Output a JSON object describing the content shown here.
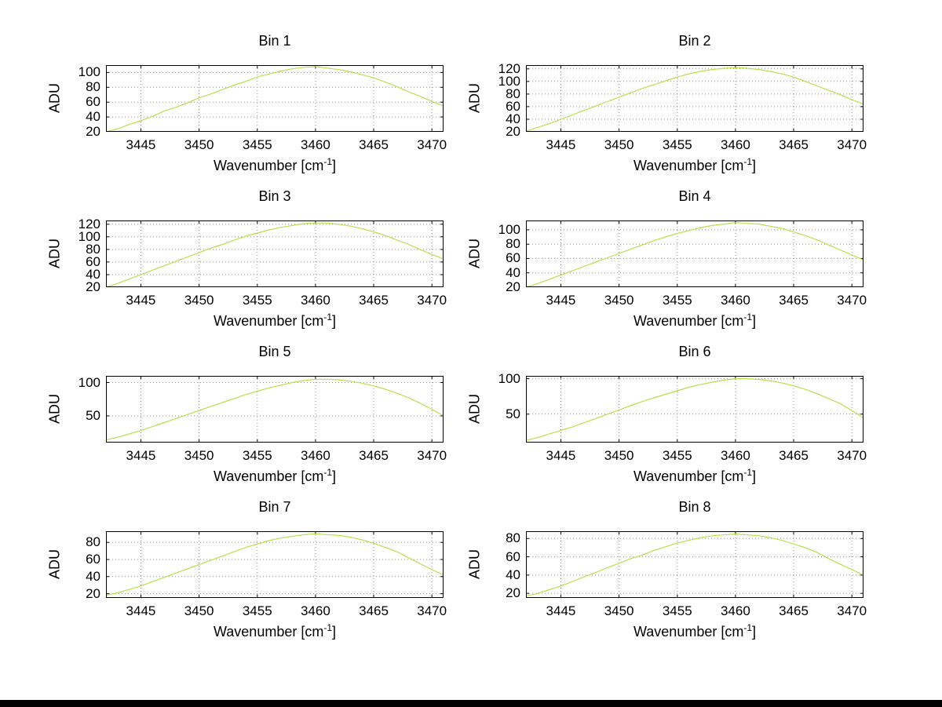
{
  "figure": {
    "background": "#ffffff",
    "bottom_bar_color": "#000000"
  },
  "line_color": "#b8e04e",
  "grid_color": "#909090",
  "axis_color": "#000000",
  "labels": {
    "x_pre": "Wavenumber [cm",
    "x_sup": "-1",
    "x_post": "]",
    "y": "ADU"
  },
  "chart_data": [
    {
      "type": "line",
      "title": "Bin 1",
      "xlabel": "Wavenumber [cm^-1]",
      "ylabel": "ADU",
      "xlim": [
        3442,
        3471
      ],
      "ylim": [
        20,
        110
      ],
      "xticks": [
        3445,
        3450,
        3455,
        3460,
        3465,
        3470
      ],
      "yticks": [
        20,
        40,
        60,
        80,
        100
      ],
      "grid": true,
      "x": [
        3442,
        3443,
        3444,
        3445,
        3446,
        3447,
        3448,
        3449,
        3450,
        3451,
        3452,
        3453,
        3454,
        3455,
        3456,
        3457,
        3458,
        3459,
        3460,
        3461,
        3462,
        3463,
        3464,
        3465,
        3466,
        3467,
        3468,
        3469,
        3470,
        3471
      ],
      "y": [
        20,
        24,
        30,
        35,
        41,
        48,
        53,
        59,
        66,
        71,
        77,
        83,
        88,
        94,
        98,
        102,
        105,
        107,
        108,
        106,
        104,
        101,
        97,
        93,
        87,
        81,
        74,
        68,
        61,
        55
      ]
    },
    {
      "type": "line",
      "title": "Bin 2",
      "xlabel": "Wavenumber [cm^-1]",
      "ylabel": "ADU",
      "xlim": [
        3442,
        3471
      ],
      "ylim": [
        20,
        126
      ],
      "xticks": [
        3445,
        3450,
        3455,
        3460,
        3465,
        3470
      ],
      "yticks": [
        20,
        40,
        60,
        80,
        100,
        120
      ],
      "grid": true,
      "x": [
        3442,
        3443,
        3444,
        3445,
        3446,
        3447,
        3448,
        3449,
        3450,
        3451,
        3452,
        3453,
        3454,
        3455,
        3456,
        3457,
        3458,
        3459,
        3460,
        3461,
        3462,
        3463,
        3464,
        3465,
        3466,
        3467,
        3468,
        3469,
        3470,
        3471
      ],
      "y": [
        21,
        27,
        33,
        40,
        47,
        54,
        61,
        68,
        75,
        82,
        89,
        95,
        101,
        107,
        112,
        116,
        119,
        121,
        122,
        121,
        119,
        116,
        112,
        107,
        100,
        93,
        86,
        79,
        71,
        64
      ]
    },
    {
      "type": "line",
      "title": "Bin 3",
      "xlabel": "Wavenumber [cm^-1]",
      "ylabel": "ADU",
      "xlim": [
        3442,
        3471
      ],
      "ylim": [
        20,
        126
      ],
      "xticks": [
        3445,
        3450,
        3455,
        3460,
        3465,
        3470
      ],
      "yticks": [
        20,
        40,
        60,
        80,
        100,
        120
      ],
      "grid": true,
      "x": [
        3442,
        3443,
        3444,
        3445,
        3446,
        3447,
        3448,
        3449,
        3450,
        3451,
        3452,
        3453,
        3454,
        3455,
        3456,
        3457,
        3458,
        3459,
        3460,
        3461,
        3462,
        3463,
        3464,
        3465,
        3466,
        3467,
        3468,
        3469,
        3470,
        3471
      ],
      "y": [
        20,
        26,
        33,
        40,
        47,
        54,
        61,
        68,
        75,
        82,
        88,
        95,
        101,
        106,
        111,
        115,
        118,
        121,
        122,
        122,
        120,
        117,
        113,
        108,
        102,
        95,
        88,
        80,
        72,
        65
      ]
    },
    {
      "type": "line",
      "title": "Bin 4",
      "xlabel": "Wavenumber [cm^-1]",
      "ylabel": "ADU",
      "xlim": [
        3442,
        3471
      ],
      "ylim": [
        20,
        113
      ],
      "xticks": [
        3445,
        3450,
        3455,
        3460,
        3465,
        3470
      ],
      "yticks": [
        20,
        40,
        60,
        80,
        100
      ],
      "grid": true,
      "x": [
        3442,
        3443,
        3444,
        3445,
        3446,
        3447,
        3448,
        3449,
        3450,
        3451,
        3452,
        3453,
        3454,
        3455,
        3456,
        3457,
        3458,
        3459,
        3460,
        3461,
        3462,
        3463,
        3464,
        3465,
        3466,
        3467,
        3468,
        3469,
        3470,
        3471
      ],
      "y": [
        20,
        25,
        31,
        37,
        43,
        49,
        55,
        61,
        67,
        73,
        79,
        85,
        90,
        95,
        99,
        103,
        106,
        108,
        110,
        109,
        108,
        105,
        102,
        97,
        92,
        86,
        79,
        72,
        65,
        58
      ]
    },
    {
      "type": "line",
      "title": "Bin 5",
      "xlabel": "Wavenumber [cm^-1]",
      "ylabel": "ADU",
      "xlim": [
        3442,
        3471
      ],
      "ylim": [
        10,
        110
      ],
      "xticks": [
        3445,
        3450,
        3455,
        3460,
        3465,
        3470
      ],
      "yticks": [
        50,
        100
      ],
      "grid": true,
      "x": [
        3442,
        3443,
        3444,
        3445,
        3446,
        3447,
        3448,
        3449,
        3450,
        3451,
        3452,
        3453,
        3454,
        3455,
        3456,
        3457,
        3458,
        3459,
        3460,
        3461,
        3462,
        3463,
        3464,
        3465,
        3466,
        3467,
        3468,
        3469,
        3470,
        3471
      ],
      "y": [
        14,
        18,
        23,
        28,
        34,
        40,
        46,
        52,
        58,
        64,
        70,
        76,
        82,
        87,
        92,
        96,
        100,
        103,
        105,
        105,
        104,
        102,
        99,
        95,
        90,
        84,
        77,
        69,
        60,
        50
      ]
    },
    {
      "type": "line",
      "title": "Bin 6",
      "xlabel": "Wavenumber [cm^-1]",
      "ylabel": "ADU",
      "xlim": [
        3442,
        3471
      ],
      "ylim": [
        10,
        104
      ],
      "xticks": [
        3445,
        3450,
        3455,
        3460,
        3465,
        3470
      ],
      "yticks": [
        50,
        100
      ],
      "grid": true,
      "x": [
        3442,
        3443,
        3444,
        3445,
        3446,
        3447,
        3448,
        3449,
        3450,
        3451,
        3452,
        3453,
        3454,
        3455,
        3456,
        3457,
        3458,
        3459,
        3460,
        3461,
        3462,
        3463,
        3464,
        3465,
        3466,
        3467,
        3468,
        3469,
        3470,
        3471
      ],
      "y": [
        13,
        17,
        22,
        27,
        32,
        38,
        44,
        50,
        56,
        62,
        68,
        73,
        78,
        83,
        88,
        92,
        95,
        98,
        100,
        100,
        99,
        97,
        94,
        90,
        85,
        79,
        72,
        65,
        55,
        45
      ]
    },
    {
      "type": "line",
      "title": "Bin 7",
      "xlabel": "Wavenumber [cm^-1]",
      "ylabel": "ADU",
      "xlim": [
        3442,
        3471
      ],
      "ylim": [
        15,
        93
      ],
      "xticks": [
        3445,
        3450,
        3455,
        3460,
        3465,
        3470
      ],
      "yticks": [
        20,
        40,
        60,
        80
      ],
      "grid": true,
      "x": [
        3442,
        3443,
        3444,
        3445,
        3446,
        3447,
        3448,
        3449,
        3450,
        3451,
        3452,
        3453,
        3454,
        3455,
        3456,
        3457,
        3458,
        3459,
        3460,
        3461,
        3462,
        3463,
        3464,
        3465,
        3466,
        3467,
        3468,
        3469,
        3470,
        3471
      ],
      "y": [
        18,
        21,
        25,
        29,
        34,
        39,
        44,
        49,
        54,
        59,
        64,
        69,
        74,
        78,
        82,
        85,
        87,
        89,
        90,
        89,
        88,
        86,
        83,
        79,
        74,
        69,
        62,
        55,
        48,
        42
      ]
    },
    {
      "type": "line",
      "title": "Bin 8",
      "xlabel": "Wavenumber [cm^-1]",
      "ylabel": "ADU",
      "xlim": [
        3442,
        3471
      ],
      "ylim": [
        15,
        88
      ],
      "xticks": [
        3445,
        3450,
        3455,
        3460,
        3465,
        3470
      ],
      "yticks": [
        20,
        40,
        60,
        80
      ],
      "grid": true,
      "x": [
        3442,
        3443,
        3444,
        3445,
        3446,
        3447,
        3448,
        3449,
        3450,
        3451,
        3452,
        3453,
        3454,
        3455,
        3456,
        3457,
        3458,
        3459,
        3460,
        3461,
        3462,
        3463,
        3464,
        3465,
        3466,
        3467,
        3468,
        3469,
        3470,
        3471
      ],
      "y": [
        17,
        20,
        24,
        28,
        33,
        38,
        43,
        48,
        53,
        58,
        62,
        67,
        71,
        75,
        78,
        81,
        83,
        84,
        85,
        84,
        83,
        81,
        78,
        74,
        70,
        65,
        58,
        52,
        46,
        40
      ]
    }
  ]
}
